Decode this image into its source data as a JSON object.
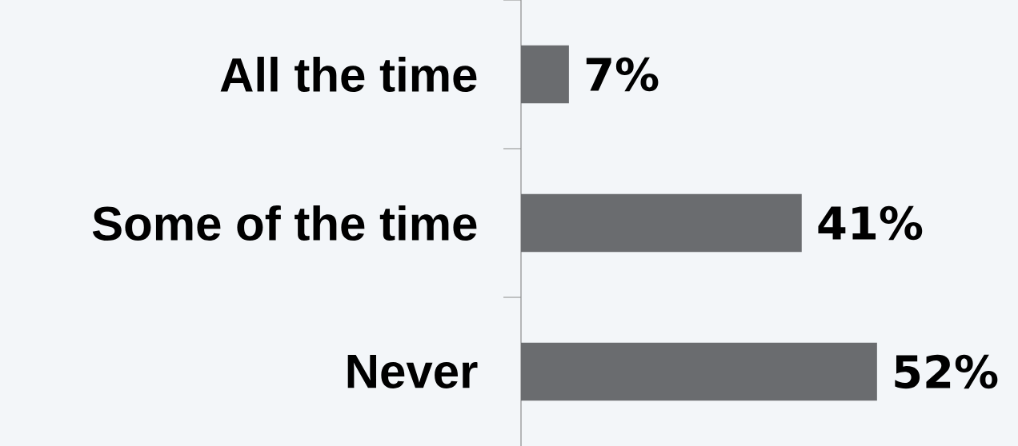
{
  "chart_data": {
    "type": "bar",
    "orientation": "horizontal",
    "categories": [
      "All the time",
      "Some of the time",
      "Never"
    ],
    "values": [
      7,
      41,
      52
    ],
    "color": "#6a6c6f",
    "value_labels": [
      "7%",
      "41%",
      "52%"
    ]
  }
}
